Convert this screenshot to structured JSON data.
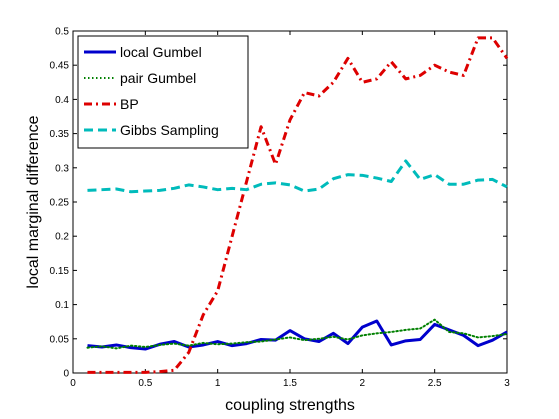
{
  "chart_data": {
    "type": "line",
    "xlabel": "coupling strengths",
    "ylabel": "local marginal difference",
    "xlim": [
      0,
      3
    ],
    "ylim": [
      0,
      0.5
    ],
    "xticks": [
      "0",
      "0.5",
      "1",
      "1.5",
      "2",
      "2.5",
      "3"
    ],
    "yticks": [
      "0",
      "0.05",
      "0.1",
      "0.15",
      "0.2",
      "0.25",
      "0.3",
      "0.35",
      "0.4",
      "0.45",
      "0.5"
    ],
    "grid": false,
    "legend_position": "top-left",
    "x": [
      0.1,
      0.2,
      0.3,
      0.4,
      0.5,
      0.6,
      0.7,
      0.8,
      0.9,
      1.0,
      1.1,
      1.2,
      1.3,
      1.4,
      1.5,
      1.6,
      1.7,
      1.8,
      1.9,
      2.0,
      2.1,
      2.2,
      2.3,
      2.4,
      2.5,
      2.6,
      2.7,
      2.8,
      2.9,
      3.0
    ],
    "series": [
      {
        "name": "local Gumbel",
        "color": "#0000cc",
        "style": "solid",
        "values": [
          0.04,
          0.038,
          0.041,
          0.037,
          0.035,
          0.042,
          0.046,
          0.038,
          0.041,
          0.046,
          0.04,
          0.043,
          0.049,
          0.048,
          0.062,
          0.05,
          0.046,
          0.058,
          0.043,
          0.067,
          0.076,
          0.041,
          0.047,
          0.049,
          0.071,
          0.063,
          0.055,
          0.04,
          0.048,
          0.06
        ]
      },
      {
        "name": "pair Gumbel",
        "color": "#008000",
        "style": "dotted",
        "values": [
          0.037,
          0.039,
          0.036,
          0.04,
          0.038,
          0.041,
          0.043,
          0.04,
          0.044,
          0.042,
          0.043,
          0.045,
          0.046,
          0.049,
          0.052,
          0.048,
          0.05,
          0.053,
          0.049,
          0.055,
          0.058,
          0.06,
          0.063,
          0.065,
          0.078,
          0.06,
          0.058,
          0.052,
          0.054,
          0.057
        ]
      },
      {
        "name": "BP",
        "color": "#dd0000",
        "style": "dashdot",
        "values": [
          0.001,
          0.001,
          0.001,
          0.001,
          0.001,
          0.002,
          0.004,
          0.03,
          0.085,
          0.12,
          0.2,
          0.28,
          0.36,
          0.305,
          0.37,
          0.41,
          0.405,
          0.425,
          0.46,
          0.425,
          0.43,
          0.455,
          0.43,
          0.435,
          0.45,
          0.44,
          0.435,
          0.49,
          0.49,
          0.46
        ]
      },
      {
        "name": "Gibbs Sampling",
        "color": "#00bbbb",
        "style": "dashed",
        "values": [
          0.267,
          0.268,
          0.269,
          0.265,
          0.266,
          0.267,
          0.27,
          0.275,
          0.272,
          0.268,
          0.27,
          0.268,
          0.276,
          0.278,
          0.275,
          0.266,
          0.269,
          0.284,
          0.29,
          0.289,
          0.285,
          0.28,
          0.31,
          0.283,
          0.29,
          0.276,
          0.276,
          0.282,
          0.283,
          0.272
        ]
      }
    ]
  }
}
